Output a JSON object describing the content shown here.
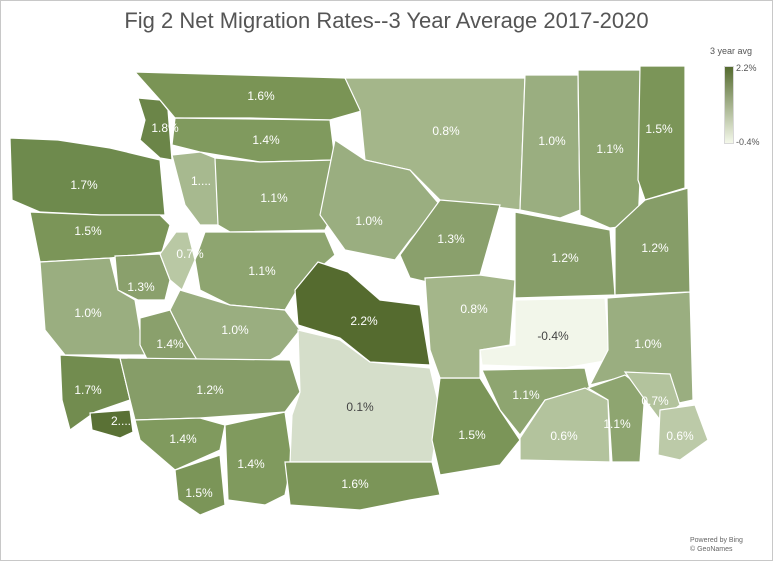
{
  "title": "Fig 2 Net Migration Rates--3 Year Average 2017-2020",
  "legend": {
    "title": "3 year avg",
    "max": "2.2%",
    "min": "-0.4%",
    "max_color": "#556b2f",
    "min_color": "#f4f8ea"
  },
  "credits": {
    "line1": "Powered by Bing",
    "line2": "© GeoNames"
  },
  "counties": [
    {
      "id": "san-juan",
      "label": "1.8%"
    },
    {
      "id": "whatcom",
      "label": "1.6%"
    },
    {
      "id": "skagit",
      "label": "1.4%"
    },
    {
      "id": "clallam",
      "label": "1.7%"
    },
    {
      "id": "jefferson",
      "label": "1.5%"
    },
    {
      "id": "island",
      "label": "1...."
    },
    {
      "id": "snohomish",
      "label": "1.1%"
    },
    {
      "id": "kitsap",
      "label": "0.7%"
    },
    {
      "id": "mason",
      "label": "1.3%"
    },
    {
      "id": "grays-harbor",
      "label": "1.0%"
    },
    {
      "id": "king",
      "label": "1.1%"
    },
    {
      "id": "pierce",
      "label": "1.0%"
    },
    {
      "id": "thurston",
      "label": "1.4%"
    },
    {
      "id": "pacific",
      "label": "1.7%"
    },
    {
      "id": "wahkiakum",
      "label": "2...."
    },
    {
      "id": "lewis",
      "label": "1.2%"
    },
    {
      "id": "cowlitz",
      "label": "1.4%"
    },
    {
      "id": "clark",
      "label": "1.5%"
    },
    {
      "id": "skamania",
      "label": "1.4%"
    },
    {
      "id": "okanogan",
      "label": "0.8%"
    },
    {
      "id": "chelan",
      "label": "1.0%"
    },
    {
      "id": "douglas",
      "label": "1.3%"
    },
    {
      "id": "kittitas",
      "label": "2.2%"
    },
    {
      "id": "yakima",
      "label": "0.1%"
    },
    {
      "id": "klickitat",
      "label": "1.6%"
    },
    {
      "id": "benton",
      "label": "1.5%"
    },
    {
      "id": "grant",
      "label": "0.8%"
    },
    {
      "id": "adams",
      "label": "-0.4%"
    },
    {
      "id": "ferry",
      "label": "1.0%"
    },
    {
      "id": "stevens",
      "label": "1.1%"
    },
    {
      "id": "pend-oreille",
      "label": "1.5%"
    },
    {
      "id": "lincoln",
      "label": "1.2%"
    },
    {
      "id": "spokane",
      "label": "1.2%"
    },
    {
      "id": "whitman",
      "label": "1.0%"
    },
    {
      "id": "franklin",
      "label": "1.1%"
    },
    {
      "id": "walla-walla",
      "label": "0.6%"
    },
    {
      "id": "columbia",
      "label": "1.1%"
    },
    {
      "id": "garfield",
      "label": "0.7%"
    },
    {
      "id": "asotin",
      "label": "0.6%"
    }
  ]
}
